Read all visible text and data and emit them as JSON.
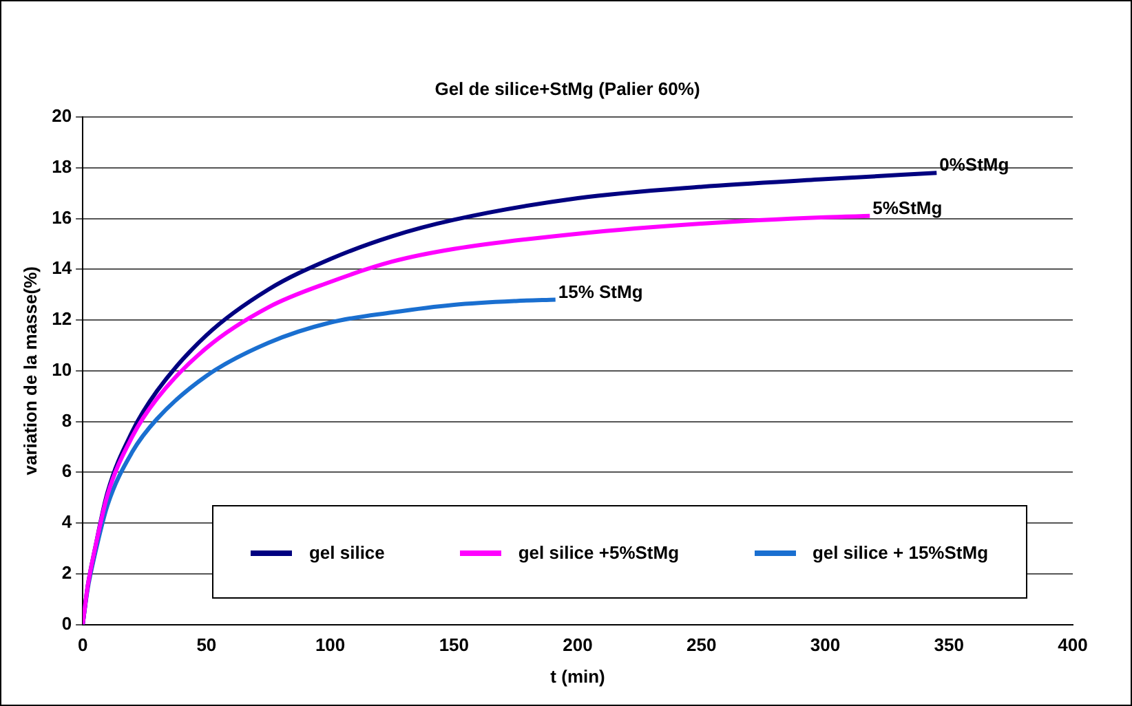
{
  "chart_data": {
    "type": "line",
    "title": "Gel de silice+StMg (Palier 60%)",
    "xlabel": "t (min)",
    "ylabel": "variation de la masse(%)",
    "xlim": [
      0,
      400
    ],
    "xticks": [
      0,
      50,
      100,
      150,
      200,
      250,
      300,
      350,
      400
    ],
    "ylim": [
      0,
      20
    ],
    "yticks": [
      0,
      2,
      4,
      6,
      8,
      10,
      12,
      14,
      16,
      18,
      20
    ],
    "grid": "y",
    "legend": "bottom",
    "marker": "none",
    "line_style": "solid",
    "series": [
      {
        "name": "gel silice",
        "color": "#000080",
        "x": [
          0,
          2,
          5,
          10,
          20,
          30,
          50,
          75,
          100,
          125,
          150,
          200,
          250,
          300,
          345
        ],
        "values": [
          0,
          1.5,
          3,
          5.2,
          7.6,
          9.2,
          11.4,
          13.2,
          14.4,
          15.3,
          15.95,
          16.8,
          17.25,
          17.55,
          17.8
        ]
      },
      {
        "name": "gel silice +5%StMg",
        "color": "#ff00ff",
        "x": [
          0,
          2,
          5,
          10,
          20,
          30,
          50,
          75,
          100,
          125,
          150,
          200,
          250,
          300,
          318
        ],
        "values": [
          0,
          1.5,
          3,
          5.1,
          7.4,
          8.9,
          10.9,
          12.5,
          13.5,
          14.3,
          14.8,
          15.4,
          15.8,
          16.05,
          16.1
        ]
      },
      {
        "name": "gel silice + 15%StMg",
        "color": "#1a6fd0",
        "x": [
          0,
          2,
          5,
          10,
          20,
          30,
          50,
          75,
          100,
          125,
          150,
          175,
          191
        ],
        "values": [
          0,
          1.4,
          2.8,
          4.7,
          6.8,
          8.1,
          9.8,
          11.1,
          11.9,
          12.3,
          12.6,
          12.75,
          12.8
        ]
      }
    ],
    "annotations": [
      {
        "text": "0%StMg",
        "x": 345,
        "y": 17.8
      },
      {
        "text": "5%StMg",
        "x": 318,
        "y": 16.1
      },
      {
        "text": "15% StMg",
        "x": 191,
        "y": 12.8
      }
    ]
  }
}
